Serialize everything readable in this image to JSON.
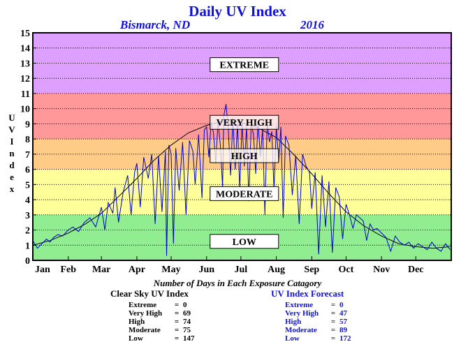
{
  "header": {
    "title": "Daily UV Index",
    "location": "Bismarck, ND",
    "year": "2016"
  },
  "chart_data": {
    "type": "line",
    "title": "Daily UV Index",
    "ylabel": "UV Index",
    "ylim": [
      0,
      15
    ],
    "yticks": [
      "0",
      "1",
      "2",
      "3",
      "4",
      "5",
      "6",
      "7",
      "8",
      "9",
      "10",
      "11",
      "12",
      "13",
      "14",
      "15"
    ],
    "xlim": [
      0,
      366
    ],
    "months": [
      "Jan",
      "Feb",
      "Mar",
      "Apr",
      "May",
      "Jun",
      "Jul",
      "Aug",
      "Sep",
      "Oct",
      "Nov",
      "Dec"
    ],
    "month_start_days": [
      0,
      31,
      60,
      91,
      121,
      152,
      182,
      213,
      244,
      274,
      305,
      335
    ],
    "grid": true,
    "bands": [
      {
        "label": "LOW",
        "from": 0,
        "to": 3,
        "color": "#90ee90"
      },
      {
        "label": "MODERATE",
        "from": 3,
        "to": 6,
        "color": "#ffff99"
      },
      {
        "label": "HIGH",
        "from": 6,
        "to": 8,
        "color": "#ffcc88"
      },
      {
        "label": "VERY HIGH",
        "from": 8,
        "to": 11,
        "color": "#ff9999"
      },
      {
        "label": "EXTREME",
        "from": 11,
        "to": 15,
        "color": "#dda0ff"
      }
    ],
    "band_label_y": {
      "LOW": 1.25,
      "MODERATE": 4.4,
      "HIGH": 6.9,
      "VERY HIGH": 9.1,
      "EXTREME": 12.9
    },
    "series": [
      {
        "name": "Clear Sky UV Index",
        "color": "#000000",
        "x": [
          0,
          15,
          31,
          46,
          60,
          75,
          91,
          106,
          121,
          136,
          152,
          167,
          182,
          198,
          213,
          228,
          244,
          259,
          274,
          289,
          305,
          320,
          335,
          350,
          365
        ],
        "y": [
          1.0,
          1.3,
          1.8,
          2.4,
          3.1,
          4.2,
          5.4,
          6.6,
          7.6,
          8.4,
          8.9,
          9.2,
          9.1,
          8.7,
          8.1,
          7.0,
          5.7,
          4.4,
          3.2,
          2.3,
          1.6,
          1.1,
          0.9,
          0.8,
          0.9
        ]
      },
      {
        "name": "UV Index Forecast",
        "color": "#0000cc",
        "x": [
          0,
          4,
          8,
          12,
          15,
          18,
          22,
          26,
          31,
          35,
          40,
          45,
          50,
          55,
          60,
          63,
          66,
          70,
          72,
          75,
          79,
          83,
          86,
          89,
          91,
          94,
          97,
          101,
          104,
          107,
          110,
          113,
          116,
          117,
          119,
          121,
          123,
          125,
          128,
          131,
          134,
          137,
          140,
          142,
          145,
          148,
          150,
          152,
          154,
          156,
          158,
          160,
          162,
          164,
          166,
          167,
          169,
          171,
          173,
          175,
          177,
          179,
          181,
          183,
          185,
          187,
          189,
          191,
          193,
          195,
          197,
          199,
          201,
          203,
          205,
          207,
          209,
          211,
          213,
          215,
          217,
          219,
          221,
          224,
          227,
          230,
          233,
          236,
          239,
          242,
          244,
          247,
          250,
          253,
          256,
          259,
          262,
          265,
          268,
          271,
          274,
          277,
          280,
          283,
          286,
          289,
          292,
          295,
          298,
          301,
          305,
          309,
          313,
          317,
          321,
          325,
          329,
          333,
          337,
          341,
          345,
          349,
          353,
          357,
          361,
          365
        ],
        "y": [
          1.3,
          0.8,
          1.1,
          1.4,
          1.2,
          1.5,
          1.7,
          1.6,
          2.0,
          2.2,
          1.9,
          2.5,
          2.8,
          2.2,
          3.5,
          2.0,
          3.8,
          3.1,
          4.8,
          2.5,
          4.5,
          5.6,
          3.0,
          5.8,
          6.4,
          3.5,
          6.8,
          5.4,
          7.0,
          2.4,
          6.9,
          3.2,
          7.2,
          0.3,
          7.6,
          7.0,
          1.1,
          7.4,
          4.6,
          7.8,
          3.0,
          7.9,
          7.2,
          5.0,
          8.3,
          4.1,
          8.6,
          8.8,
          6.8,
          9.1,
          8.4,
          6.4,
          9.2,
          7.6,
          4.8,
          9.5,
          10.3,
          8.6,
          5.6,
          9.4,
          6.0,
          9.0,
          4.7,
          9.1,
          6.2,
          8.8,
          3.9,
          9.0,
          8.3,
          5.7,
          9.2,
          6.8,
          8.7,
          3.0,
          9.1,
          7.8,
          8.5,
          4.6,
          8.9,
          6.5,
          8.8,
          2.8,
          8.2,
          7.6,
          4.3,
          6.9,
          2.4,
          7.0,
          6.2,
          5.8,
          3.4,
          5.8,
          0.4,
          5.6,
          2.2,
          5.2,
          0.5,
          4.8,
          4.2,
          1.4,
          3.7,
          3.0,
          2.1,
          3.0,
          2.8,
          2.6,
          1.3,
          2.4,
          2.0,
          2.1,
          1.8,
          1.5,
          0.6,
          1.6,
          1.2,
          1.0,
          1.2,
          0.8,
          1.1,
          0.9,
          0.7,
          1.2,
          0.8,
          0.6,
          1.1,
          0.7
        ]
      }
    ]
  },
  "stats": {
    "caption": "Number of Days in Each Exposure Catagory",
    "clear_sky": {
      "title": "Clear Sky UV Index",
      "rows": [
        {
          "label": "Extreme",
          "eq": "=",
          "value": "0"
        },
        {
          "label": "Very High",
          "eq": "=",
          "value": "69"
        },
        {
          "label": "High",
          "eq": "=",
          "value": "74"
        },
        {
          "label": "Moderate",
          "eq": "=",
          "value": "75"
        },
        {
          "label": "Low",
          "eq": "=",
          "value": "147"
        }
      ]
    },
    "forecast": {
      "title": "UV Index Forecast",
      "rows": [
        {
          "label": "Extreme",
          "eq": "=",
          "value": "0"
        },
        {
          "label": "Very High",
          "eq": "=",
          "value": "47"
        },
        {
          "label": "High",
          "eq": "=",
          "value": "57"
        },
        {
          "label": "Moderate",
          "eq": "=",
          "value": "89"
        },
        {
          "label": "Low",
          "eq": "=",
          "value": "172"
        }
      ]
    }
  }
}
